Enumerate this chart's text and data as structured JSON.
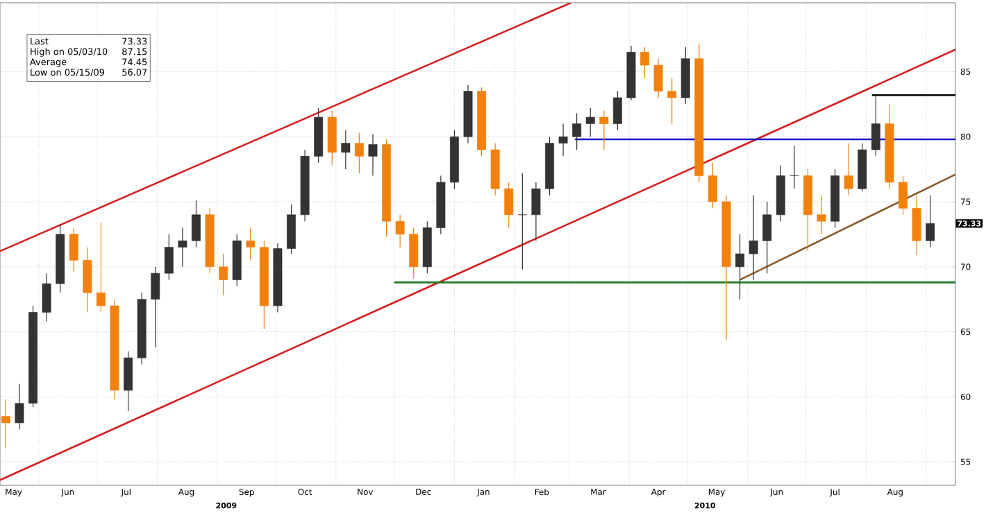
{
  "chart_data": {
    "type": "candlestick",
    "x": [
      "2009-05-15",
      "2009-05-22",
      "2009-05-29",
      "2009-06-05",
      "2009-06-12",
      "2009-06-19",
      "2009-06-26",
      "2009-07-03",
      "2009-07-10",
      "2009-07-17",
      "2009-07-24",
      "2009-07-31",
      "2009-08-07",
      "2009-08-14",
      "2009-08-21",
      "2009-08-28",
      "2009-09-04",
      "2009-09-11",
      "2009-09-18",
      "2009-09-25",
      "2009-10-02",
      "2009-10-09",
      "2009-10-16",
      "2009-10-23",
      "2009-10-30",
      "2009-11-06",
      "2009-11-13",
      "2009-11-20",
      "2009-11-27",
      "2009-12-04",
      "2009-12-11",
      "2009-12-18",
      "2009-12-25",
      "2010-01-01",
      "2010-01-08",
      "2010-01-15",
      "2010-01-22",
      "2010-01-29",
      "2010-02-05",
      "2010-02-12",
      "2010-02-19",
      "2010-02-26",
      "2010-03-05",
      "2010-03-12",
      "2010-03-19",
      "2010-03-26",
      "2010-04-02",
      "2010-04-09",
      "2010-04-16",
      "2010-04-23",
      "2010-04-30",
      "2010-05-07",
      "2010-05-14",
      "2010-05-21",
      "2010-05-28",
      "2010-06-04",
      "2010-06-11",
      "2010-06-18",
      "2010-06-25",
      "2010-07-02",
      "2010-07-09",
      "2010-07-16",
      "2010-07-23",
      "2010-07-30",
      "2010-08-06",
      "2010-08-13",
      "2010-08-20",
      "2010-08-27",
      "2010-09-03"
    ],
    "ohlc": [
      [
        58.5,
        59.8,
        56.07,
        58.0
      ],
      [
        58.0,
        61.0,
        57.5,
        59.5
      ],
      [
        59.5,
        67.0,
        59.2,
        66.5
      ],
      [
        66.5,
        69.5,
        65.8,
        68.7
      ],
      [
        68.7,
        73.3,
        68.0,
        72.5
      ],
      [
        72.5,
        73.0,
        69.6,
        70.5
      ],
      [
        70.5,
        71.5,
        66.5,
        68.0
      ],
      [
        68.0,
        73.4,
        66.5,
        67.0
      ],
      [
        67.0,
        67.5,
        59.8,
        60.5
      ],
      [
        60.5,
        63.5,
        58.9,
        63.0
      ],
      [
        63.0,
        68.0,
        62.5,
        67.5
      ],
      [
        67.5,
        70.0,
        63.8,
        69.5
      ],
      [
        69.5,
        72.5,
        69.0,
        71.5
      ],
      [
        71.5,
        73.0,
        70.0,
        72.0
      ],
      [
        72.0,
        75.1,
        71.5,
        74.0
      ],
      [
        74.0,
        74.5,
        69.5,
        70.0
      ],
      [
        70.0,
        71.0,
        67.8,
        69.0
      ],
      [
        69.0,
        72.5,
        68.5,
        72.0
      ],
      [
        72.0,
        73.0,
        70.5,
        71.5
      ],
      [
        71.5,
        72.0,
        65.2,
        67.0
      ],
      [
        67.0,
        71.8,
        66.5,
        71.4
      ],
      [
        71.4,
        74.8,
        71.0,
        74.0
      ],
      [
        74.0,
        79.0,
        73.5,
        78.5
      ],
      [
        78.5,
        82.2,
        78.0,
        81.5
      ],
      [
        81.5,
        82.0,
        77.8,
        78.8
      ],
      [
        78.8,
        80.5,
        77.5,
        79.5
      ],
      [
        79.5,
        80.3,
        77.2,
        78.5
      ],
      [
        78.5,
        80.2,
        77.0,
        79.4
      ],
      [
        79.4,
        79.8,
        72.3,
        73.5
      ],
      [
        73.5,
        74.0,
        71.5,
        72.5
      ],
      [
        72.5,
        73.0,
        69.1,
        70.0
      ],
      [
        70.0,
        73.5,
        69.5,
        73.0
      ],
      [
        73.0,
        77.0,
        72.5,
        76.5
      ],
      [
        76.5,
        80.5,
        76.0,
        80.0
      ],
      [
        80.0,
        84.0,
        79.5,
        83.5
      ],
      [
        83.5,
        83.8,
        78.5,
        79.0
      ],
      [
        79.0,
        79.5,
        75.5,
        76.0
      ],
      [
        76.0,
        76.5,
        73.0,
        74.0
      ],
      [
        74.0,
        77.2,
        69.8,
        74.0
      ],
      [
        74.0,
        76.5,
        72.0,
        76.0
      ],
      [
        76.0,
        80.0,
        75.5,
        79.5
      ],
      [
        79.5,
        81.0,
        78.5,
        80.0
      ],
      [
        80.0,
        81.8,
        79.0,
        81.0
      ],
      [
        81.0,
        82.2,
        80.0,
        81.5
      ],
      [
        81.5,
        82.0,
        79.0,
        81.0
      ],
      [
        81.0,
        83.5,
        80.5,
        83.0
      ],
      [
        83.0,
        87.0,
        82.8,
        86.5
      ],
      [
        86.5,
        86.9,
        84.5,
        85.5
      ],
      [
        85.5,
        86.0,
        83.0,
        83.5
      ],
      [
        83.5,
        84.5,
        81.0,
        83.0
      ],
      [
        83.0,
        86.9,
        82.5,
        86.0
      ],
      [
        86.0,
        87.15,
        76.5,
        77.0
      ],
      [
        77.0,
        78.0,
        74.5,
        75.0
      ],
      [
        75.0,
        75.5,
        64.4,
        70.0
      ],
      [
        70.0,
        72.5,
        67.5,
        71.0
      ],
      [
        71.0,
        75.5,
        69.0,
        72.0
      ],
      [
        72.0,
        75.0,
        69.5,
        74.0
      ],
      [
        74.0,
        77.8,
        73.5,
        77.0
      ],
      [
        77.0,
        79.3,
        76.0,
        77.0
      ],
      [
        77.0,
        77.5,
        71.2,
        74.0
      ],
      [
        74.0,
        75.5,
        72.5,
        73.5
      ],
      [
        73.5,
        77.5,
        73.0,
        77.0
      ],
      [
        77.0,
        79.5,
        75.5,
        76.0
      ],
      [
        76.0,
        79.5,
        75.8,
        79.0
      ],
      [
        79.0,
        83.1,
        78.5,
        81.0
      ],
      [
        81.0,
        82.5,
        76.0,
        76.5
      ],
      [
        76.5,
        77.0,
        74.0,
        74.5
      ],
      [
        74.5,
        75.5,
        70.9,
        72.0
      ],
      [
        72.0,
        75.5,
        71.5,
        73.33
      ]
    ],
    "series": [
      {
        "type": "line",
        "color": "#d42020",
        "x": [
          "2009-05-12",
          "2010-03-02"
        ],
        "values": [
          71.2,
          90.3
        ]
      },
      {
        "type": "line",
        "color": "#d42020",
        "x": [
          "2009-05-12",
          "2010-09-16"
        ],
        "values": [
          53.6,
          86.7
        ]
      },
      {
        "type": "line",
        "color": "#8a5a2a",
        "x": [
          "2010-05-28",
          "2010-09-16"
        ],
        "values": [
          69.0,
          77.1
        ]
      },
      {
        "type": "line",
        "color": "#1a7a1a",
        "x": [
          "2009-12-01",
          "2010-09-16"
        ],
        "values": [
          68.8,
          68.8
        ]
      },
      {
        "type": "line",
        "color": "#1414c8",
        "x": [
          "2010-03-04",
          "2010-09-16"
        ],
        "values": [
          79.8,
          79.8
        ]
      },
      {
        "type": "line",
        "color": "#000000",
        "x": [
          "2010-08-04",
          "2010-09-16"
        ],
        "values": [
          83.2,
          83.2
        ]
      }
    ],
    "xlim": [
      "2009-05-12",
      "2010-09-16"
    ],
    "xticks": [
      {
        "value": "2009-05-19",
        "label": "May"
      },
      {
        "value": "2009-06-16",
        "label": "Jun"
      },
      {
        "value": "2009-07-16",
        "label": "Jul"
      },
      {
        "value": "2009-08-16",
        "label": "Aug"
      },
      {
        "value": "2009-09-16",
        "label": "Sep"
      },
      {
        "value": "2009-10-16",
        "label": "Oct"
      },
      {
        "value": "2009-11-16",
        "label": "Nov"
      },
      {
        "value": "2009-12-16",
        "label": "Dec"
      },
      {
        "value": "2010-01-16",
        "label": "Jan"
      },
      {
        "value": "2010-02-15",
        "label": "Feb"
      },
      {
        "value": "2010-03-16",
        "label": "Mar"
      },
      {
        "value": "2010-04-16",
        "label": "Apr"
      },
      {
        "value": "2010-05-16",
        "label": "May"
      },
      {
        "value": "2010-06-16",
        "label": "Jun"
      },
      {
        "value": "2010-07-16",
        "label": "Jul"
      },
      {
        "value": "2010-08-16",
        "label": "Aug"
      },
      {
        "value": "2009-06-01",
        "label": null
      },
      {
        "value": "2009-07-01",
        "label": null
      },
      {
        "value": "2009-08-01",
        "label": null
      },
      {
        "value": "2009-09-01",
        "label": null
      },
      {
        "value": "2009-10-01",
        "label": null
      },
      {
        "value": "2009-11-01",
        "label": null
      },
      {
        "value": "2009-12-01",
        "label": null
      },
      {
        "value": "2010-01-01",
        "label": null
      },
      {
        "value": "2010-02-01",
        "label": null
      },
      {
        "value": "2010-03-01",
        "label": null
      },
      {
        "value": "2010-04-01",
        "label": null
      },
      {
        "value": "2010-05-01",
        "label": null
      },
      {
        "value": "2010-06-01",
        "label": null
      },
      {
        "value": "2010-07-01",
        "label": null
      },
      {
        "value": "2010-08-01",
        "label": null
      },
      {
        "value": "2010-09-01",
        "label": null
      }
    ],
    "ylim": [
      53.2,
      90.3
    ],
    "yticks": [
      55,
      60,
      65,
      70,
      75,
      80,
      85
    ],
    "grid": true,
    "annotations": [
      "Last",
      "73.33",
      "High on 05/03/10",
      "87.15",
      "Average",
      "74.45",
      "Low on 05/15/09",
      "56.07",
      "2009",
      "2010",
      {
        "text": "73.33",
        "y": 73.33
      }
    ]
  }
}
